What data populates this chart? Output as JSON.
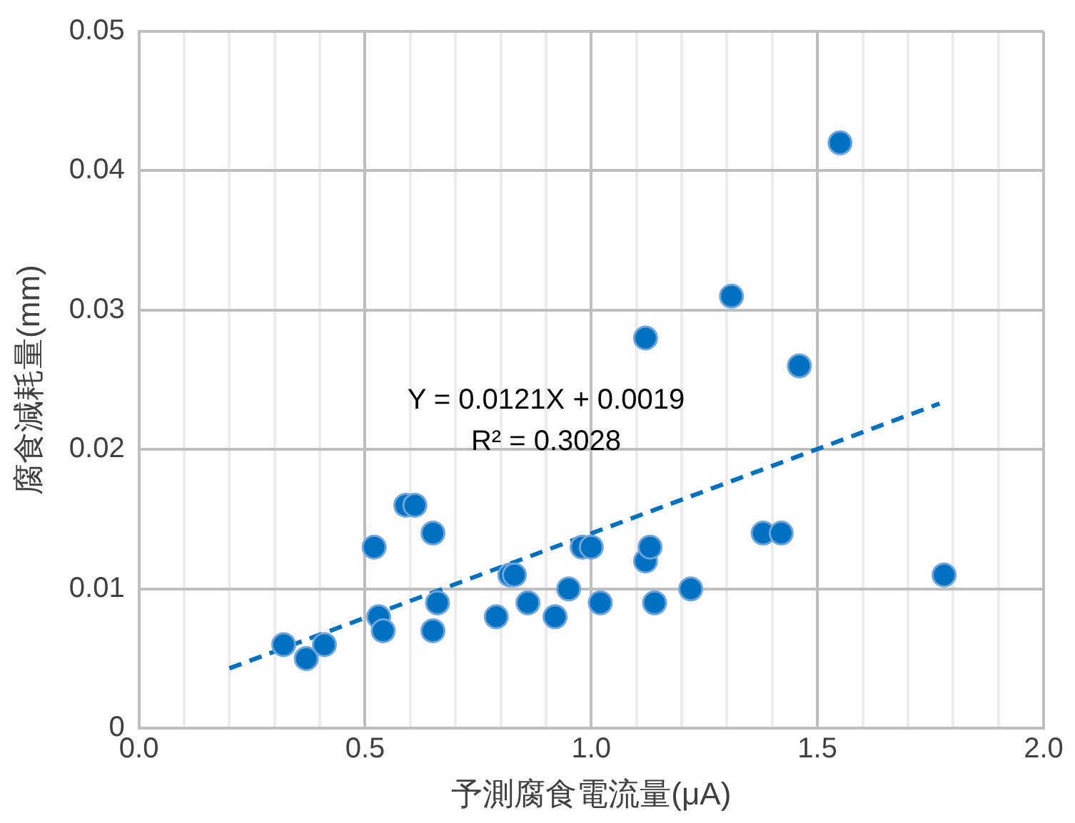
{
  "chart_data": {
    "type": "scatter",
    "xlabel": "予測腐食電流量(μA)",
    "ylabel": "腐食減耗量(mm)",
    "xlim": [
      0,
      2
    ],
    "ylim": [
      0,
      0.05
    ],
    "xticks": [
      {
        "value": 0,
        "label": "0.0"
      },
      {
        "value": 0.1,
        "label": null
      },
      {
        "value": 0.2,
        "label": null
      },
      {
        "value": 0.3,
        "label": null
      },
      {
        "value": 0.4,
        "label": null
      },
      {
        "value": 0.5,
        "label": "0.5"
      },
      {
        "value": 0.6,
        "label": null
      },
      {
        "value": 0.7,
        "label": null
      },
      {
        "value": 0.8,
        "label": null
      },
      {
        "value": 0.9,
        "label": null
      },
      {
        "value": 1,
        "label": "1.0"
      },
      {
        "value": 1.1,
        "label": null
      },
      {
        "value": 1.2,
        "label": null
      },
      {
        "value": 1.3,
        "label": null
      },
      {
        "value": 1.4,
        "label": null
      },
      {
        "value": 1.5,
        "label": "1.5"
      },
      {
        "value": 1.6,
        "label": null
      },
      {
        "value": 1.7,
        "label": null
      },
      {
        "value": 1.8,
        "label": null
      },
      {
        "value": 1.9,
        "label": null
      },
      {
        "value": 2,
        "label": "2.0"
      }
    ],
    "yticks": [
      0,
      0.01,
      0.02,
      0.03,
      0.04,
      0.05
    ],
    "grid": true,
    "legend": false,
    "marker": "circle",
    "annotations": [
      "Y = 0.0121X + 0.0019",
      "R² = 0.3028"
    ],
    "series": [
      {
        "color": "#0070c0",
        "x": [
          0.32,
          0.37,
          0.41,
          0.52,
          0.53,
          0.54,
          0.59,
          0.61,
          0.65,
          0.65,
          0.66,
          0.79,
          0.82,
          0.83,
          0.86,
          0.92,
          0.95,
          0.98,
          1.0,
          1.02,
          1.12,
          1.13,
          1.12,
          1.14,
          1.22,
          1.31,
          1.38,
          1.42,
          1.46,
          1.55,
          1.78
        ],
        "values": [
          0.006,
          0.005,
          0.006,
          0.013,
          0.008,
          0.007,
          0.016,
          0.016,
          0.014,
          0.007,
          0.009,
          0.008,
          0.011,
          0.011,
          0.009,
          0.008,
          0.01,
          0.013,
          0.013,
          0.009,
          0.012,
          0.013,
          0.028,
          0.009,
          0.01,
          0.031,
          0.014,
          0.014,
          0.026,
          0.042,
          0.011
        ]
      },
      {
        "type": "line",
        "color": "#0070c0",
        "line_style": "dashed",
        "marker": "none",
        "x": [
          0.2,
          1.77
        ],
        "values": [
          0.0043,
          0.0233
        ]
      }
    ]
  }
}
